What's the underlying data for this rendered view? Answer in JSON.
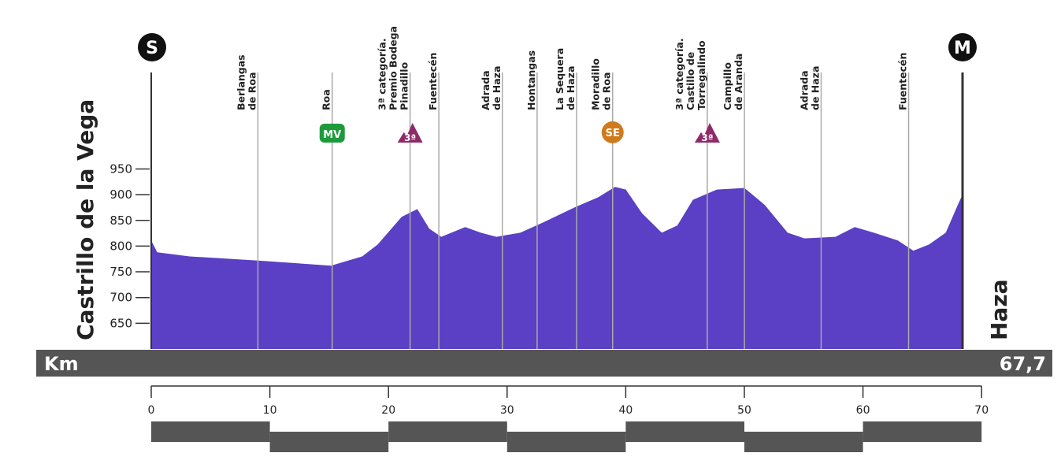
{
  "chart_data": {
    "type": "area",
    "title": "",
    "start": "Castrillo de la Vega",
    "finish": "Haza",
    "start_icon": "S",
    "finish_icon": "M",
    "xlabel": "Km",
    "total_km": "67,7",
    "total_km_value": 67.7,
    "ylim": [
      600,
      1000
    ],
    "yticks": [
      650,
      700,
      750,
      800,
      850,
      900,
      950
    ],
    "xticks": [
      0,
      10,
      20,
      30,
      40,
      50,
      60,
      70
    ],
    "fill_color": "#5b3fc4",
    "profile": [
      [
        0,
        811
      ],
      [
        0.5,
        788
      ],
      [
        3.2,
        780
      ],
      [
        8.9,
        772
      ],
      [
        15,
        762
      ],
      [
        17.6,
        780
      ],
      [
        18.9,
        803
      ],
      [
        20.9,
        857
      ],
      [
        22.2,
        872
      ],
      [
        23.2,
        834
      ],
      [
        24.2,
        818
      ],
      [
        26.2,
        837
      ],
      [
        27.5,
        826
      ],
      [
        28.8,
        818
      ],
      [
        30.8,
        826
      ],
      [
        32.7,
        846
      ],
      [
        35.4,
        876
      ],
      [
        37.3,
        895
      ],
      [
        38.7,
        915
      ],
      [
        39.6,
        910
      ],
      [
        40.95,
        864
      ],
      [
        42.6,
        826
      ],
      [
        43.9,
        840
      ],
      [
        45.2,
        890
      ],
      [
        47.2,
        910
      ],
      [
        49.5,
        913
      ],
      [
        51.2,
        880
      ],
      [
        53.1,
        826
      ],
      [
        54.5,
        815
      ],
      [
        57.1,
        818
      ],
      [
        58.7,
        837
      ],
      [
        60.3,
        826
      ],
      [
        62.3,
        811
      ],
      [
        63.6,
        791
      ],
      [
        64.9,
        803
      ],
      [
        66.3,
        826
      ],
      [
        67.3,
        880
      ],
      [
        67.7,
        900
      ]
    ],
    "waypoints": [
      {
        "km": 8.9,
        "lines": [
          "Berlangas",
          "de Roa"
        ]
      },
      {
        "km": 15.1,
        "lines": [
          "Roa"
        ],
        "badge": "MV",
        "badge_type": "sprint",
        "badge_color": "#1e9a3c"
      },
      {
        "km": 21.6,
        "lines": [
          "3ª categoría.",
          "Premio Bodega",
          "Pinadillo"
        ],
        "badge": "3ª",
        "badge_type": "climb",
        "badge_color": "#8e2a6a"
      },
      {
        "km": 24.0,
        "lines": [
          "Fuentecén"
        ]
      },
      {
        "km": 29.3,
        "lines": [
          "Adrada",
          "de Haza"
        ]
      },
      {
        "km": 32.2,
        "lines": [
          "Hontangas"
        ]
      },
      {
        "km": 35.5,
        "lines": [
          "La Sequera",
          "de Haza"
        ]
      },
      {
        "km": 38.5,
        "lines": [
          "Moradillo",
          "de Roa"
        ],
        "badge": "SE",
        "badge_type": "special",
        "badge_color": "#d07a1e"
      },
      {
        "km": 46.4,
        "lines": [
          "3ª categoría.",
          "Castillo de",
          "Torregalindo"
        ],
        "badge": "3ª",
        "badge_type": "climb",
        "badge_color": "#8e2a6a"
      },
      {
        "km": 49.5,
        "lines": [
          "Campillo",
          "de Aranda"
        ]
      },
      {
        "km": 55.9,
        "lines": [
          "Adrada",
          "de Haza"
        ]
      },
      {
        "km": 63.2,
        "lines": [
          "Fuentecén"
        ]
      }
    ]
  }
}
